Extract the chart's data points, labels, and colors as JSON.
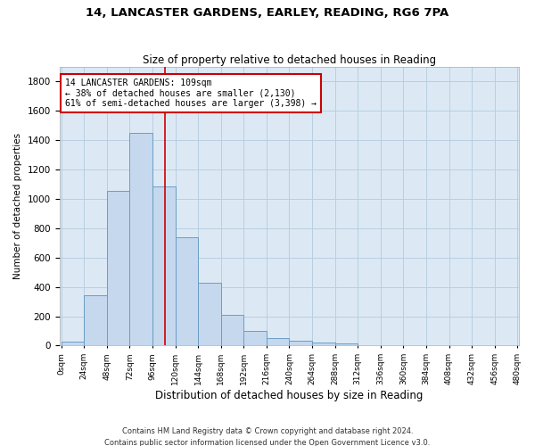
{
  "title1": "14, LANCASTER GARDENS, EARLEY, READING, RG6 7PA",
  "title2": "Size of property relative to detached houses in Reading",
  "xlabel": "Distribution of detached houses by size in Reading",
  "ylabel": "Number of detached properties",
  "footnote1": "Contains HM Land Registry data © Crown copyright and database right 2024.",
  "footnote2": "Contains public sector information licensed under the Open Government Licence v3.0.",
  "bar_color": "#c5d8ee",
  "bar_edge_color": "#6a9ec5",
  "grid_color": "#b8cfe0",
  "background_color": "#dce9f5",
  "annotation_text": "14 LANCASTER GARDENS: 109sqm\n← 38% of detached houses are smaller (2,130)\n61% of semi-detached houses are larger (3,398) →",
  "bin_width": 24,
  "bin_starts": [
    0,
    24,
    48,
    72,
    96,
    120,
    144,
    168,
    192,
    216,
    240,
    264,
    288,
    312,
    336,
    360,
    384,
    408,
    432,
    456
  ],
  "counts": [
    28,
    340,
    1055,
    1450,
    1085,
    735,
    430,
    210,
    100,
    50,
    35,
    18,
    13,
    0,
    0,
    0,
    0,
    0,
    0,
    0
  ],
  "ylim": [
    0,
    1900
  ],
  "yticks": [
    0,
    200,
    400,
    600,
    800,
    1000,
    1200,
    1400,
    1600,
    1800
  ],
  "red_line_x": 109,
  "annotation_box_color": "#ffffff",
  "annotation_box_edge": "#cc0000",
  "red_line_color": "#cc0000",
  "title1_fontsize": 9.5,
  "title2_fontsize": 8.5,
  "xlabel_fontsize": 8.5,
  "ylabel_fontsize": 7.5,
  "tick_fontsize": 6.5,
  "ytick_fontsize": 7.5,
  "footnote_fontsize": 6.0,
  "annotation_fontsize": 7.0
}
